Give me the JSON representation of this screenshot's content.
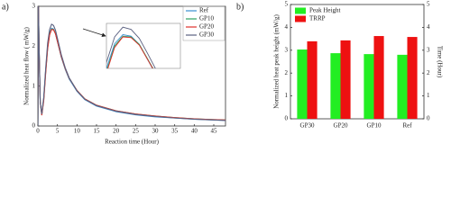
{
  "chart_data": [
    {
      "type": "line",
      "panel": "a)",
      "xlabel": "Reaction time (Hour)",
      "ylabel": "Normalized heat flow ( mW/g)",
      "x": [
        0,
        0.15,
        0.3,
        0.6,
        1,
        1.5,
        2,
        2.5,
        3,
        3.5,
        4,
        4.5,
        5,
        6,
        7,
        8,
        10,
        12,
        15,
        20,
        25,
        30,
        35,
        40,
        45,
        48
      ],
      "series": [
        {
          "name": "Ref",
          "color": "#3a8fd0",
          "values": [
            0,
            3,
            2,
            0.6,
            0.3,
            0.7,
            1.4,
            2,
            2.33,
            2.45,
            2.43,
            2.32,
            2.12,
            1.72,
            1.42,
            1.18,
            0.87,
            0.66,
            0.5,
            0.36,
            0.28,
            0.23,
            0.2,
            0.17,
            0.15,
            0.14
          ]
        },
        {
          "name": "GP10",
          "color": "#2ca25f",
          "values": [
            0,
            3,
            2,
            0.6,
            0.28,
            0.66,
            1.36,
            1.96,
            2.3,
            2.43,
            2.42,
            2.32,
            2.13,
            1.74,
            1.44,
            1.2,
            0.89,
            0.68,
            0.52,
            0.38,
            0.3,
            0.25,
            0.21,
            0.18,
            0.16,
            0.15
          ]
        },
        {
          "name": "GP20",
          "color": "#e0312b",
          "values": [
            0,
            3,
            2,
            0.6,
            0.27,
            0.64,
            1.33,
            1.94,
            2.28,
            2.42,
            2.41,
            2.31,
            2.12,
            1.74,
            1.44,
            1.2,
            0.89,
            0.68,
            0.52,
            0.38,
            0.3,
            0.25,
            0.21,
            0.18,
            0.16,
            0.15
          ]
        },
        {
          "name": "GP30",
          "color": "#5a6080",
          "values": [
            0,
            3,
            2,
            0.6,
            0.3,
            0.72,
            1.45,
            2.08,
            2.42,
            2.55,
            2.52,
            2.4,
            2.2,
            1.78,
            1.46,
            1.21,
            0.88,
            0.67,
            0.51,
            0.37,
            0.29,
            0.24,
            0.2,
            0.17,
            0.15,
            0.14
          ]
        }
      ],
      "xlim": [
        0,
        48
      ],
      "xticks": [
        0,
        5,
        10,
        15,
        20,
        25,
        30,
        35,
        40,
        45
      ],
      "ylim": [
        0,
        3
      ],
      "yticks": [
        0,
        1,
        2,
        3
      ],
      "legend": "upper right"
    },
    {
      "type": "bar",
      "panel": "b)",
      "ylabel": "Normalized heat peak height (mW/g)",
      "y2label": "Time (Hour)",
      "categories": [
        "GP30",
        "GP20",
        "GP10",
        "Ref"
      ],
      "series": [
        {
          "name": "Peak Height",
          "color": "#22ee22",
          "values": [
            3.03,
            2.87,
            2.83,
            2.8
          ]
        },
        {
          "name": "TRRP",
          "color": "#ee1111",
          "axis": "y2",
          "values": [
            3.39,
            3.43,
            3.62,
            3.58
          ]
        }
      ],
      "ylim": [
        0,
        5
      ],
      "yticks": [
        0,
        1,
        2,
        3,
        4,
        5
      ],
      "y2lim": [
        0,
        5
      ],
      "y2ticks": [
        0,
        1,
        2,
        3,
        4,
        5
      ],
      "legend": "upper left"
    }
  ]
}
